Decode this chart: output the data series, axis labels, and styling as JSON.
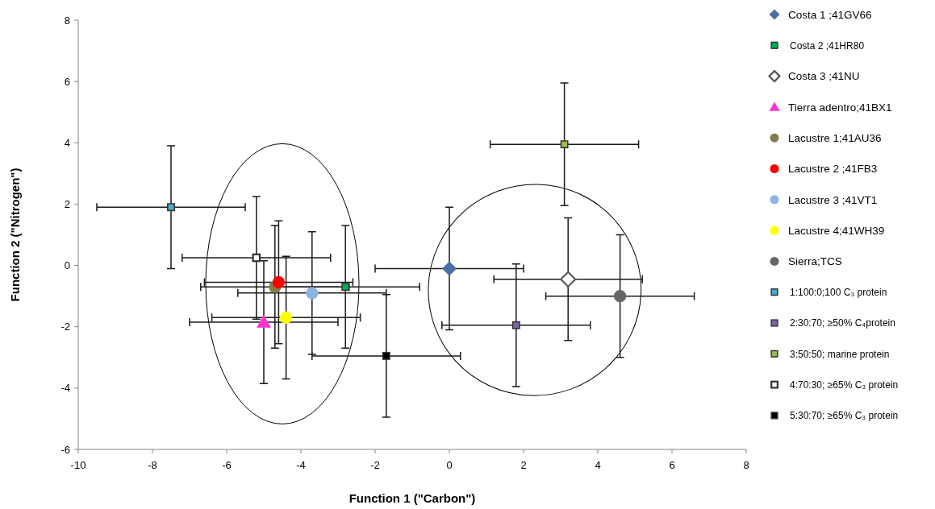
{
  "chart_data": {
    "type": "scatter",
    "xlabel": "Function 1 (\"Carbon\")",
    "ylabel": "Function 2 (\"Nitrogen\")",
    "xlim": [
      -10,
      8
    ],
    "xticks": [
      -10,
      -8,
      -6,
      -4,
      -2,
      0,
      2,
      4,
      6,
      8
    ],
    "ylim": [
      -6,
      8
    ],
    "yticks": [
      -6,
      -4,
      -2,
      0,
      2,
      4,
      6,
      8
    ],
    "grid": false,
    "legend": "right",
    "series": [
      {
        "name": "Costa 1 ;41GV66",
        "color": "#4a6fa5",
        "marker": "diamond",
        "x": [
          0
        ],
        "values": [
          -0.1
        ],
        "errors": [
          2
        ],
        "xerrors": [
          2
        ]
      },
      {
        "name": "Costa 2 ;41HR80",
        "color": "#00b050",
        "marker": "square",
        "x": [
          -2.8
        ],
        "values": [
          -0.7
        ],
        "errors": [
          2
        ],
        "xerrors": [
          2
        ]
      },
      {
        "name": "Costa 3 ;41NU",
        "color": "#ffffff",
        "marker": "diamond",
        "x": [
          3.2
        ],
        "values": [
          -0.45
        ],
        "errors": [
          2
        ],
        "xerrors": [
          2
        ]
      },
      {
        "name": "Tierra adentro;41BX1",
        "color": "#ff33cc",
        "marker": "triangle",
        "x": [
          -5
        ],
        "values": [
          -1.85
        ],
        "errors": [
          2
        ],
        "xerrors": [
          2
        ]
      },
      {
        "name": "Lacustre 1;41AU36",
        "color": "#847c4a",
        "marker": "circle",
        "x": [
          -4.7
        ],
        "values": [
          -0.7
        ],
        "errors": [
          2
        ],
        "xerrors": [
          2
        ]
      },
      {
        "name": "Lacustre 2 ;41FB3",
        "color": "#ff0000",
        "marker": "circle",
        "x": [
          -4.6
        ],
        "values": [
          -0.55
        ],
        "errors": [
          2
        ],
        "xerrors": [
          2
        ]
      },
      {
        "name": "Lacustre 3 ;41VT1",
        "color": "#8db3e2",
        "marker": "circle",
        "x": [
          -3.7
        ],
        "values": [
          -0.9
        ],
        "errors": [
          2
        ],
        "xerrors": [
          2
        ]
      },
      {
        "name": "Lacustre 4;41WH39",
        "color": "#ffff00",
        "marker": "circle",
        "x": [
          -4.4
        ],
        "values": [
          -1.7
        ],
        "errors": [
          2
        ],
        "xerrors": [
          2
        ]
      },
      {
        "name": "Sierra;TCS",
        "color": "#666666",
        "marker": "circle",
        "x": [
          4.6
        ],
        "values": [
          -1
        ],
        "errors": [
          2
        ],
        "xerrors": [
          2
        ]
      },
      {
        "name": "1:100:0;100 C₃ protein",
        "color": "#4bacc6",
        "marker": "square",
        "x": [
          -7.5
        ],
        "values": [
          1.9
        ],
        "errors": [
          2
        ],
        "xerrors": [
          2
        ]
      },
      {
        "name": "2:30:70; ≥50% C₄protein",
        "color": "#8064a2",
        "marker": "square",
        "x": [
          1.8
        ],
        "values": [
          -1.95
        ],
        "errors": [
          2
        ],
        "xerrors": [
          2
        ]
      },
      {
        "name": "3:50:50; marine protein",
        "color": "#9bbb59",
        "marker": "square",
        "x": [
          3.1
        ],
        "values": [
          3.95
        ],
        "errors": [
          2
        ],
        "xerrors": [
          2
        ]
      },
      {
        "name": "4:70:30; ≥65% C₃ protein",
        "color": "#ffffff",
        "marker": "square",
        "x": [
          -5.2
        ],
        "values": [
          0.25
        ],
        "errors": [
          2
        ],
        "xerrors": [
          2
        ]
      },
      {
        "name": "5:30:70; ≥65% C₃ protein",
        "color": "#000000",
        "marker": "square",
        "x": [
          -1.7
        ],
        "values": [
          -2.95
        ],
        "errors": [
          2
        ],
        "xerrors": [
          2
        ]
      }
    ]
  }
}
